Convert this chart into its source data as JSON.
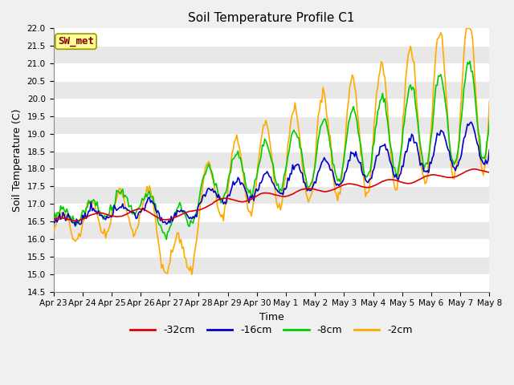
{
  "title": "Soil Temperature Profile C1",
  "xlabel": "Time",
  "ylabel": "Soil Temperature (C)",
  "ylim": [
    14.5,
    22.0
  ],
  "yticks": [
    14.5,
    15.0,
    15.5,
    16.0,
    16.5,
    17.0,
    17.5,
    18.0,
    18.5,
    19.0,
    19.5,
    20.0,
    20.5,
    21.0,
    21.5,
    22.0
  ],
  "plot_bg_color": "#f0f0f0",
  "ax_bg_color": "#f0f0f0",
  "grid_color": "#ffffff",
  "legend_label": "SW_met",
  "legend_bg": "#ffff99",
  "legend_border": "#999900",
  "legend_text_color": "#880000",
  "series_colors": {
    "-32cm": "#dd0000",
    "-16cm": "#0000cc",
    "-8cm": "#00cc00",
    "-2cm": "#ffaa00"
  },
  "series_linewidth": 1.2,
  "x_tick_labels": [
    "Apr 23",
    "Apr 24",
    "Apr 25",
    "Apr 26",
    "Apr 27",
    "Apr 28",
    "Apr 29",
    "Apr 30",
    "May 1",
    "May 2",
    "May 3",
    "May 4",
    "May 5",
    "May 6",
    "May 7",
    "May 8"
  ]
}
